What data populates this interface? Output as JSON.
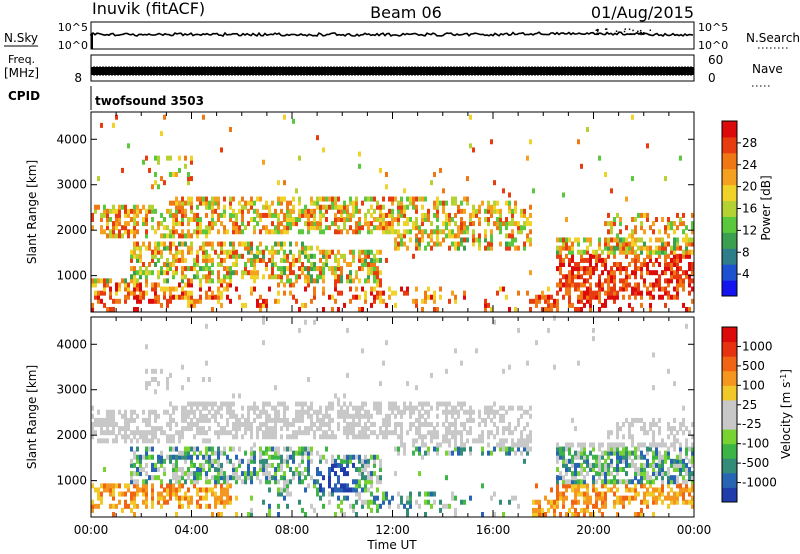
{
  "header": {
    "station": "Inuvik (fitACF)",
    "beam": "Beam 06",
    "date": "01/Aug/2015"
  },
  "strips": {
    "nsky_label": "N.Sky",
    "nsearch_label": "N.Search",
    "noise_ticks": [
      "10^5",
      "10^0"
    ],
    "freq_label": "Freq.",
    "freq_unit": "[MHz]",
    "freq_ticks": [
      "8"
    ],
    "nave_label": "Nave",
    "nave_ticks": [
      "60",
      "0"
    ],
    "cpid_label": "CPID",
    "cpid_value": "twofsound 3503"
  },
  "chart_data": [
    {
      "type": "heatmap",
      "panel": "power",
      "ylabel": "Slant Range [km]",
      "yticks": [
        1000,
        2000,
        3000,
        4000
      ],
      "ylim": [
        200,
        4600
      ],
      "xlabel": "",
      "colorbar_label": "Power [dB]",
      "colorbar_ticks": [
        "4",
        "8",
        "12",
        "16",
        "20",
        "24",
        "28"
      ],
      "colorbar_colors": [
        "#1414f0",
        "#1e50d2",
        "#2e7d8a",
        "#3aa050",
        "#5ac83c",
        "#b4d232",
        "#f0d228",
        "#f5a01e",
        "#f07814",
        "#e63c0f",
        "#dc0a0a"
      ]
    },
    {
      "type": "heatmap",
      "panel": "velocity",
      "ylabel": "Slant Range [km]",
      "yticks": [
        1000,
        2000,
        3000,
        4000
      ],
      "ylim": [
        200,
        4600
      ],
      "xlabel": "Time UT",
      "xticks": [
        "00:00",
        "04:00",
        "08:00",
        "12:00",
        "16:00",
        "20:00",
        "00:00"
      ],
      "colorbar_label": "Velocity [m s",
      "colorbar_label_sup": "-1",
      "colorbar_label_end": "]",
      "colorbar_ticks": [
        "1000",
        "500",
        "100",
        "25",
        "-25",
        "-100",
        "-500",
        "-1000"
      ],
      "colorbar_colors": [
        "#1e3caa",
        "#2864b4",
        "#328c78",
        "#3cb446",
        "#78d232",
        "#c8c8c8",
        "#c8c8c8",
        "#f0c828",
        "#f5961e",
        "#f06414",
        "#e6320f",
        "#dc0a0a"
      ]
    }
  ]
}
